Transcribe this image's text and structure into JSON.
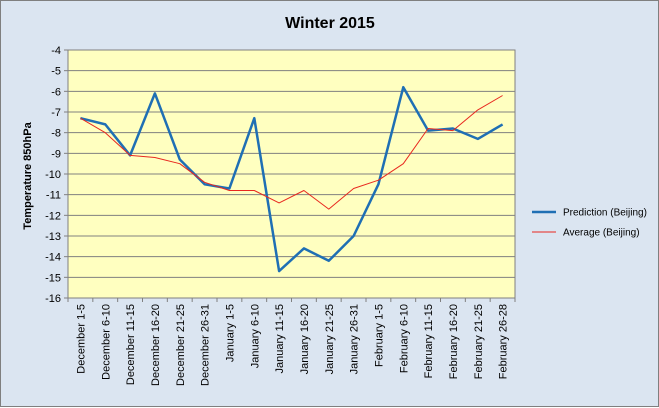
{
  "chart_data": {
    "type": "line",
    "title": "Winter 2015",
    "xlabel": "",
    "ylabel": "Temperature 850hPa",
    "ylim": [
      -16,
      -4
    ],
    "yticks": [
      -4,
      -5,
      -6,
      -7,
      -8,
      -9,
      -10,
      -11,
      -12,
      -13,
      -14,
      -15,
      -16
    ],
    "grid": true,
    "legend_position": "right",
    "categories": [
      "December 1-5",
      "December 6-10",
      "December 11-15",
      "December 16-20",
      "December 21-25",
      "December 26-31",
      "January 1-5",
      "January 6-10",
      "January 11-15",
      "January 16-20",
      "January 21-25",
      "January 26-31",
      "February 1-5",
      "February 6-10",
      "February 11-15",
      "February 16-20",
      "February 21-25",
      "February 26-28"
    ],
    "series": [
      {
        "name": "Prediction (Beijing)",
        "color": "#1f6fb4",
        "values": [
          -7.3,
          -7.6,
          -9.1,
          -6.1,
          -9.3,
          -10.5,
          -10.7,
          -7.3,
          -14.7,
          -13.6,
          -14.2,
          -13.0,
          -10.5,
          -5.8,
          -7.9,
          -7.8,
          -8.3,
          -7.6
        ]
      },
      {
        "name": "Average (Beijing)",
        "color": "#e8281f",
        "values": [
          -7.3,
          -8.0,
          -9.1,
          -9.2,
          -9.5,
          -10.4,
          -10.8,
          -10.8,
          -11.4,
          -10.8,
          -11.7,
          -10.7,
          -10.3,
          -9.5,
          -7.8,
          -7.9,
          -6.9,
          -6.2
        ]
      }
    ]
  }
}
